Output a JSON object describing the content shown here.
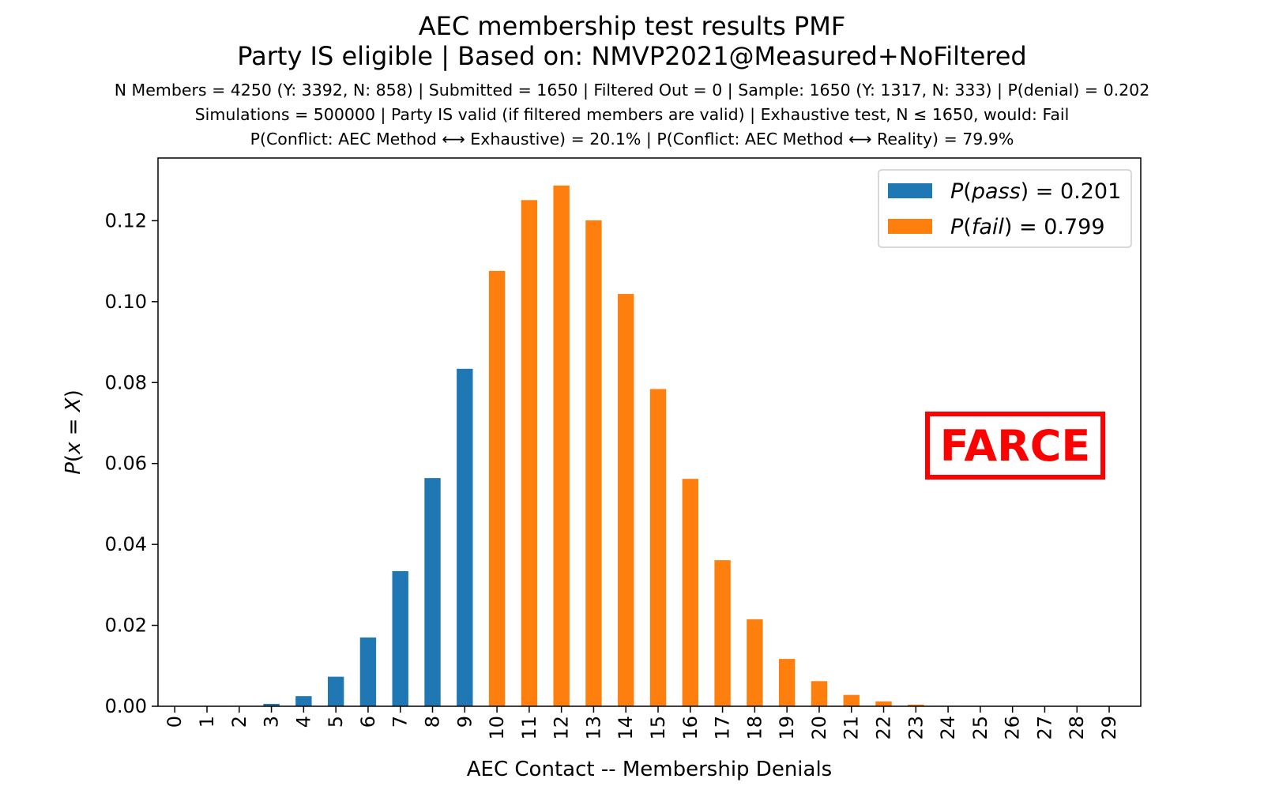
{
  "chart_data": {
    "type": "bar",
    "title": "AEC membership test results PMF",
    "subtitle": "Party IS eligible | Based on: NMVP2021@Measured+NoFiltered",
    "info_lines": [
      "N Members = 4250 (Y: 3392, N: 858) | Submitted = 1650 | Filtered Out = 0 | Sample: 1650 (Y: 1317, N: 333) | P(denial) = 0.202",
      "Simulations = 500000 | Party IS valid (if filtered members are valid) | Exhaustive test, N ≤ 1650, would: Fail",
      "P(Conflict: AEC Method ⟷ Exhaustive) = 20.1% | P(Conflict: AEC Method ⟷ Reality) = 79.9%"
    ],
    "xlabel": "AEC Contact -- Membership Denials",
    "ylabel": "P(x = X)",
    "ylim": [
      0,
      0.1355
    ],
    "yticks": [
      0.0,
      0.02,
      0.04,
      0.06,
      0.08,
      0.1,
      0.12
    ],
    "ytick_labels": [
      "0.00",
      "0.02",
      "0.04",
      "0.06",
      "0.08",
      "0.10",
      "0.12"
    ],
    "categories": [
      "0",
      "1",
      "2",
      "3",
      "4",
      "5",
      "6",
      "7",
      "8",
      "9",
      "10",
      "11",
      "12",
      "13",
      "14",
      "15",
      "16",
      "17",
      "18",
      "19",
      "20",
      "21",
      "22",
      "23",
      "24",
      "25",
      "26",
      "27",
      "28",
      "29"
    ],
    "values": [
      0,
      0,
      0.0001,
      0.0006,
      0.0025,
      0.0073,
      0.017,
      0.0334,
      0.0564,
      0.0834,
      0.1076,
      0.1251,
      0.1287,
      0.1201,
      0.1019,
      0.0784,
      0.0562,
      0.0361,
      0.0215,
      0.0117,
      0.0062,
      0.0028,
      0.0012,
      0.0004,
      0.0001,
      0,
      0,
      0,
      0,
      0
    ],
    "pass_threshold": 9,
    "series": [
      {
        "name": "P(pass) = 0.201",
        "name_parts": [
          "P",
          "(",
          "pass",
          ") = 0.201"
        ],
        "color": "#1f77b4"
      },
      {
        "name": "P(fail) = 0.799",
        "name_parts": [
          "P",
          "(",
          "fail",
          ") = 0.799"
        ],
        "color": "#ff7f0e"
      }
    ],
    "legend_position": "top-right",
    "grid": false,
    "annotation": {
      "text": "FARCE",
      "color": "#ff0000"
    }
  }
}
